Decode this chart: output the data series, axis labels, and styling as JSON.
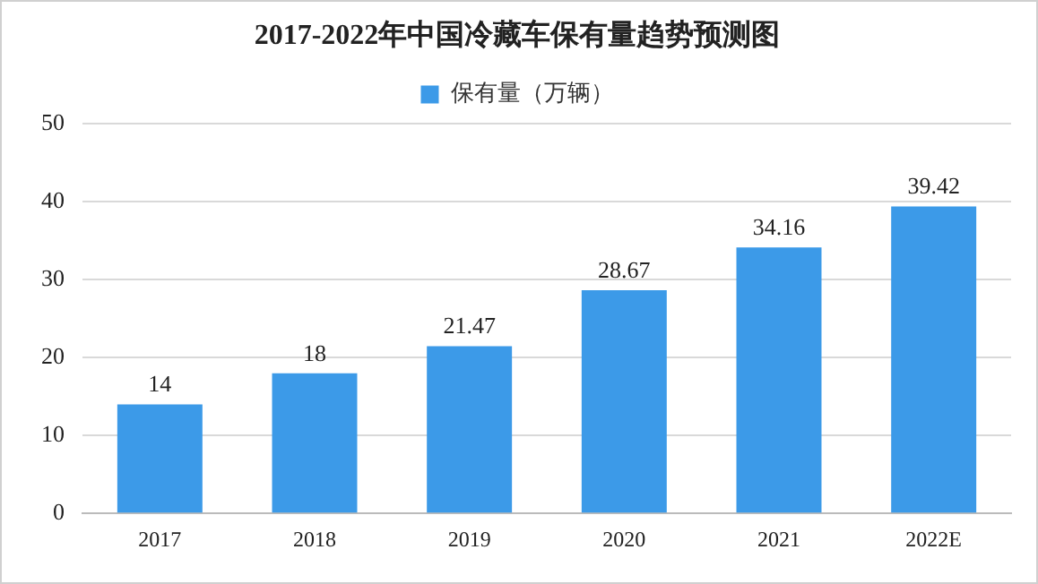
{
  "chart_data": {
    "type": "bar",
    "title": "2017-2022年中国冷藏车保有量趋势预测图",
    "categories": [
      "2017",
      "2018",
      "2019",
      "2020",
      "2021",
      "2022E"
    ],
    "series": [
      {
        "name": "保有量（万辆）",
        "color": "#3c9ae8",
        "values": [
          14,
          18,
          21.47,
          28.67,
          34.16,
          39.42
        ]
      }
    ],
    "ylim": [
      0,
      50
    ],
    "yticks": [
      0,
      10,
      20,
      30,
      40,
      50
    ],
    "grid": "y",
    "legend": "top",
    "data_labels": true
  }
}
